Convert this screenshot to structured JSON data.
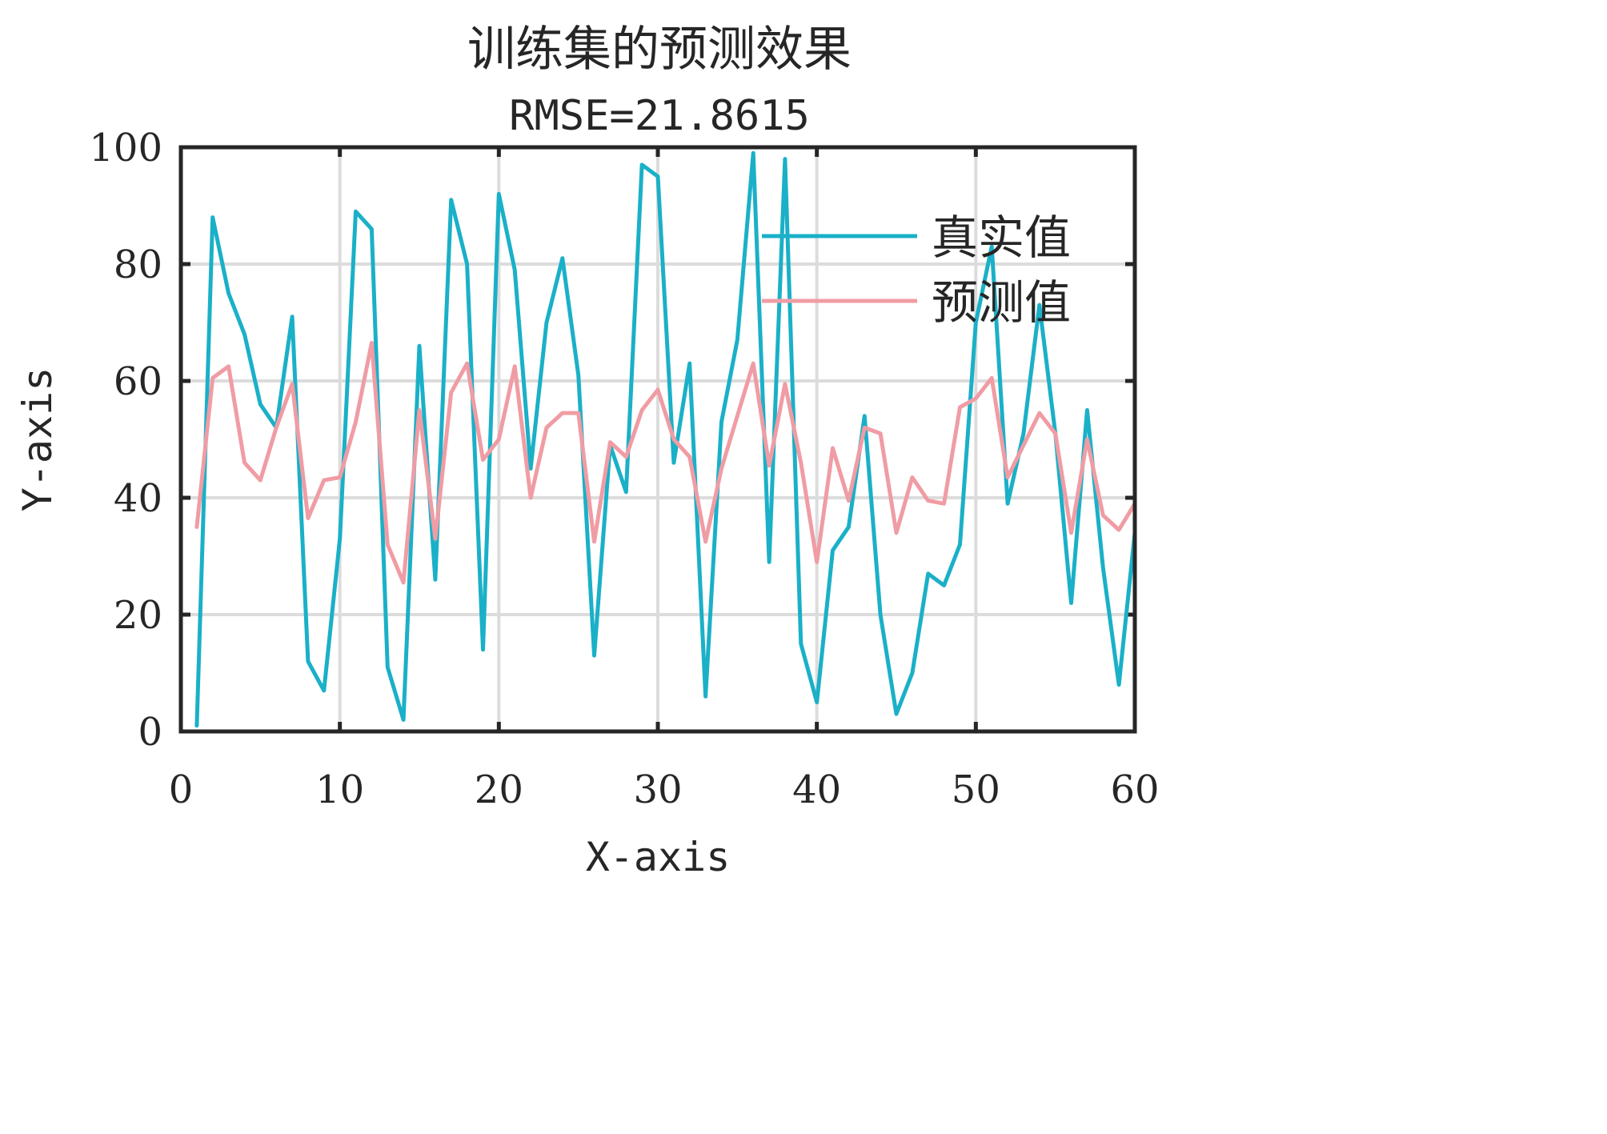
{
  "chart_data": {
    "type": "line",
    "title": "训练集的预测效果",
    "subtitle": "RMSE=21.8615",
    "xlabel": "X-axis",
    "ylabel": "Y-axis",
    "xlim": [
      0,
      60
    ],
    "ylim": [
      0,
      100
    ],
    "xticks": [
      0,
      10,
      20,
      30,
      40,
      50,
      60
    ],
    "yticks": [
      0,
      20,
      40,
      60,
      80,
      100
    ],
    "xtick_labels": [
      "0",
      "10",
      "20",
      "30",
      "40",
      "50",
      "60"
    ],
    "ytick_labels": [
      "0",
      "20",
      "40",
      "60",
      "80",
      "100"
    ],
    "grid": true,
    "legend_position": "top-right",
    "x": [
      1,
      2,
      3,
      4,
      5,
      6,
      7,
      8,
      9,
      10,
      11,
      12,
      13,
      14,
      15,
      16,
      17,
      18,
      19,
      20,
      21,
      22,
      23,
      24,
      25,
      26,
      27,
      28,
      29,
      30,
      31,
      32,
      33,
      34,
      35,
      36,
      37,
      38,
      39,
      40,
      41,
      42,
      43,
      44,
      45,
      46,
      47,
      48,
      49,
      50,
      51,
      52,
      53,
      54,
      55,
      56,
      57,
      58,
      59,
      60
    ],
    "series": [
      {
        "name": "真实值",
        "color": "#1AB0C8",
        "values": [
          1,
          88,
          75,
          68,
          56,
          52,
          71,
          12,
          7,
          33,
          89,
          86,
          11,
          2,
          66,
          26,
          91,
          80,
          14,
          92,
          79,
          45,
          70,
          81,
          61,
          13,
          49,
          41,
          97,
          95,
          46,
          63,
          6,
          53,
          67,
          99,
          29,
          98,
          15,
          5,
          31,
          35,
          54,
          20,
          3,
          10,
          27,
          25,
          32,
          70,
          83,
          39,
          51,
          73,
          51,
          22,
          55,
          28,
          8,
          34
        ]
      },
      {
        "name": "预测值",
        "color": "#F09CA4",
        "values": [
          35,
          60.5,
          62.5,
          46,
          43,
          52,
          59.5,
          36.5,
          43,
          43.5,
          53,
          66.5,
          32,
          25.5,
          55,
          33,
          58,
          63,
          46.5,
          50,
          62.5,
          40,
          52,
          54.5,
          54.5,
          32.5,
          49.5,
          47,
          55,
          58.5,
          50,
          47,
          32.5,
          45,
          54,
          63,
          45.5,
          59.5,
          46,
          29,
          48.5,
          39.5,
          52,
          51,
          34,
          43.5,
          39.5,
          39,
          55.5,
          57,
          60.5,
          43.5,
          49,
          54.5,
          51,
          34,
          50,
          37,
          34.5,
          39
        ]
      }
    ]
  }
}
